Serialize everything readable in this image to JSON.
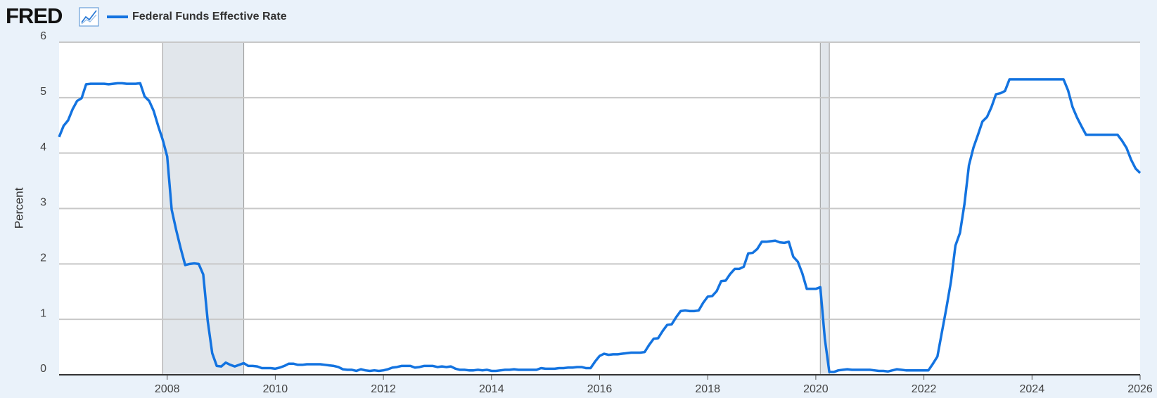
{
  "chart_data": {
    "type": "line",
    "logo": "FRED",
    "ylabel": "Percent",
    "legend": "top-left",
    "grid": true,
    "xlim": [
      2006,
      2026
    ],
    "ylim": [
      0,
      6
    ],
    "xticks": [
      2008,
      2010,
      2012,
      2014,
      2016,
      2018,
      2020,
      2022,
      2024,
      2026
    ],
    "yticks": [
      0,
      1,
      2,
      3,
      4,
      5,
      6
    ],
    "recessions": [
      [
        2007.917,
        2009.417
      ],
      [
        2020.083,
        2020.25
      ]
    ],
    "x": [
      2006.0,
      2006.083,
      2006.167,
      2006.25,
      2006.333,
      2006.417,
      2006.5,
      2006.583,
      2006.667,
      2006.75,
      2006.833,
      2006.917,
      2007.0,
      2007.083,
      2007.167,
      2007.25,
      2007.333,
      2007.417,
      2007.5,
      2007.583,
      2007.667,
      2007.75,
      2007.833,
      2007.917,
      2008.0,
      2008.083,
      2008.167,
      2008.25,
      2008.333,
      2008.417,
      2008.5,
      2008.583,
      2008.667,
      2008.75,
      2008.833,
      2008.917,
      2009.0,
      2009.083,
      2009.167,
      2009.25,
      2009.333,
      2009.417,
      2009.5,
      2009.583,
      2009.667,
      2009.75,
      2009.833,
      2009.917,
      2010.0,
      2010.083,
      2010.167,
      2010.25,
      2010.333,
      2010.417,
      2010.5,
      2010.583,
      2010.667,
      2010.75,
      2010.833,
      2010.917,
      2011.0,
      2011.083,
      2011.167,
      2011.25,
      2011.333,
      2011.417,
      2011.5,
      2011.583,
      2011.667,
      2011.75,
      2011.833,
      2011.917,
      2012.0,
      2012.083,
      2012.167,
      2012.25,
      2012.333,
      2012.417,
      2012.5,
      2012.583,
      2012.667,
      2012.75,
      2012.833,
      2012.917,
      2013.0,
      2013.083,
      2013.167,
      2013.25,
      2013.333,
      2013.417,
      2013.5,
      2013.583,
      2013.667,
      2013.75,
      2013.833,
      2013.917,
      2014.0,
      2014.083,
      2014.167,
      2014.25,
      2014.333,
      2014.417,
      2014.5,
      2014.583,
      2014.667,
      2014.75,
      2014.833,
      2014.917,
      2015.0,
      2015.083,
      2015.167,
      2015.25,
      2015.333,
      2015.417,
      2015.5,
      2015.583,
      2015.667,
      2015.75,
      2015.833,
      2015.917,
      2016.0,
      2016.083,
      2016.167,
      2016.25,
      2016.333,
      2016.417,
      2016.5,
      2016.583,
      2016.667,
      2016.75,
      2016.833,
      2016.917,
      2017.0,
      2017.083,
      2017.167,
      2017.25,
      2017.333,
      2017.417,
      2017.5,
      2017.583,
      2017.667,
      2017.75,
      2017.833,
      2017.917,
      2018.0,
      2018.083,
      2018.167,
      2018.25,
      2018.333,
      2018.417,
      2018.5,
      2018.583,
      2018.667,
      2018.75,
      2018.833,
      2018.917,
      2019.0,
      2019.083,
      2019.167,
      2019.25,
      2019.333,
      2019.417,
      2019.5,
      2019.583,
      2019.667,
      2019.75,
      2019.833,
      2019.917,
      2020.0,
      2020.083,
      2020.167,
      2020.25,
      2020.333,
      2020.417,
      2020.5,
      2020.583,
      2020.667,
      2020.75,
      2020.833,
      2020.917,
      2021.0,
      2021.083,
      2021.167,
      2021.25,
      2021.333,
      2021.417,
      2021.5,
      2021.583,
      2021.667,
      2021.75,
      2021.833,
      2021.917,
      2022.0,
      2022.083,
      2022.167,
      2022.25,
      2022.333,
      2022.417,
      2022.5,
      2022.583,
      2022.667,
      2022.75,
      2022.833,
      2022.917,
      2023.0,
      2023.083,
      2023.167,
      2023.25,
      2023.333,
      2023.417,
      2023.5,
      2023.583,
      2023.667,
      2023.75,
      2023.833,
      2023.917,
      2024.0,
      2024.083,
      2024.167,
      2024.25,
      2024.333,
      2024.417,
      2024.5,
      2024.583,
      2024.667,
      2024.75,
      2024.833,
      2024.917,
      2025.0,
      2025.083,
      2025.167,
      2025.25,
      2025.333,
      2025.417,
      2025.5,
      2025.583,
      2025.667,
      2025.75,
      2025.833,
      2025.917,
      2026.0
    ],
    "series": [
      {
        "name": "Federal Funds Effective Rate",
        "color": "#1373e0",
        "values": [
          4.29,
          4.49,
          4.59,
          4.79,
          4.94,
          4.99,
          5.24,
          5.25,
          5.25,
          5.25,
          5.25,
          5.24,
          5.25,
          5.26,
          5.26,
          5.25,
          5.25,
          5.25,
          5.26,
          5.02,
          4.94,
          4.76,
          4.49,
          4.24,
          3.94,
          2.98,
          2.61,
          2.28,
          1.98,
          2.0,
          2.01,
          2.0,
          1.81,
          0.97,
          0.39,
          0.16,
          0.15,
          0.22,
          0.18,
          0.15,
          0.18,
          0.21,
          0.16,
          0.16,
          0.15,
          0.12,
          0.12,
          0.12,
          0.11,
          0.13,
          0.16,
          0.2,
          0.2,
          0.18,
          0.18,
          0.19,
          0.19,
          0.19,
          0.19,
          0.18,
          0.17,
          0.16,
          0.14,
          0.1,
          0.09,
          0.09,
          0.07,
          0.1,
          0.08,
          0.07,
          0.08,
          0.07,
          0.08,
          0.1,
          0.13,
          0.14,
          0.16,
          0.16,
          0.16,
          0.13,
          0.14,
          0.16,
          0.16,
          0.16,
          0.14,
          0.15,
          0.14,
          0.15,
          0.11,
          0.09,
          0.09,
          0.08,
          0.08,
          0.09,
          0.08,
          0.09,
          0.07,
          0.07,
          0.08,
          0.09,
          0.09,
          0.1,
          0.09,
          0.09,
          0.09,
          0.09,
          0.09,
          0.12,
          0.11,
          0.11,
          0.11,
          0.12,
          0.12,
          0.13,
          0.13,
          0.14,
          0.14,
          0.12,
          0.12,
          0.24,
          0.34,
          0.38,
          0.36,
          0.37,
          0.37,
          0.38,
          0.39,
          0.4,
          0.4,
          0.4,
          0.41,
          0.54,
          0.65,
          0.66,
          0.79,
          0.9,
          0.91,
          1.04,
          1.15,
          1.16,
          1.15,
          1.15,
          1.16,
          1.3,
          1.41,
          1.42,
          1.51,
          1.69,
          1.7,
          1.82,
          1.91,
          1.91,
          1.95,
          2.19,
          2.2,
          2.27,
          2.4,
          2.4,
          2.41,
          2.42,
          2.39,
          2.38,
          2.4,
          2.13,
          2.04,
          1.83,
          1.55,
          1.55,
          1.55,
          1.58,
          0.65,
          0.05,
          0.05,
          0.08,
          0.09,
          0.1,
          0.09,
          0.09,
          0.09,
          0.09,
          0.09,
          0.08,
          0.07,
          0.07,
          0.06,
          0.08,
          0.1,
          0.09,
          0.08,
          0.08,
          0.08,
          0.08,
          0.08,
          0.08,
          0.2,
          0.33,
          0.77,
          1.21,
          1.68,
          2.33,
          2.56,
          3.08,
          3.78,
          4.1,
          4.33,
          4.57,
          4.65,
          4.83,
          5.06,
          5.08,
          5.12,
          5.33,
          5.33,
          5.33,
          5.33,
          5.33,
          5.33,
          5.33,
          5.33,
          5.33,
          5.33,
          5.33,
          5.33,
          5.33,
          5.13,
          4.83,
          4.64,
          4.48,
          4.33,
          4.33,
          4.33,
          4.33,
          4.33,
          4.33,
          4.33,
          4.33,
          4.22,
          4.09,
          3.88,
          3.72,
          3.64
        ]
      }
    ]
  }
}
